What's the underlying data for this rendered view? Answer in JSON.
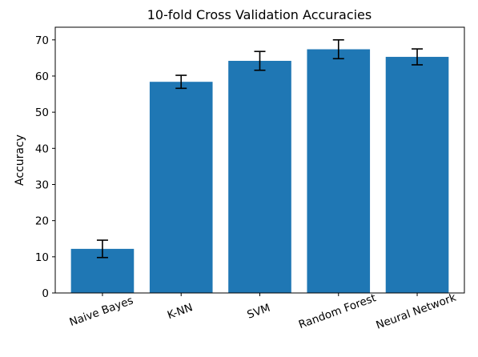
{
  "chart_data": {
    "type": "bar",
    "title": "10-fold Cross Validation Accuracies",
    "xlabel": "",
    "ylabel": "Accuracy",
    "ylim": [
      0,
      73.5
    ],
    "yticks": [
      0,
      10,
      20,
      30,
      40,
      50,
      60,
      70
    ],
    "categories": [
      "Naive Bayes",
      "K-NN",
      "SVM",
      "Random Forest",
      "Neural Network"
    ],
    "values": [
      12.2,
      58.4,
      64.2,
      67.4,
      65.3
    ],
    "errors": [
      2.4,
      1.8,
      2.6,
      2.6,
      2.2
    ],
    "bar_color": "#1f77b4",
    "error_color": "#000000",
    "grid": false,
    "legend": "none"
  }
}
